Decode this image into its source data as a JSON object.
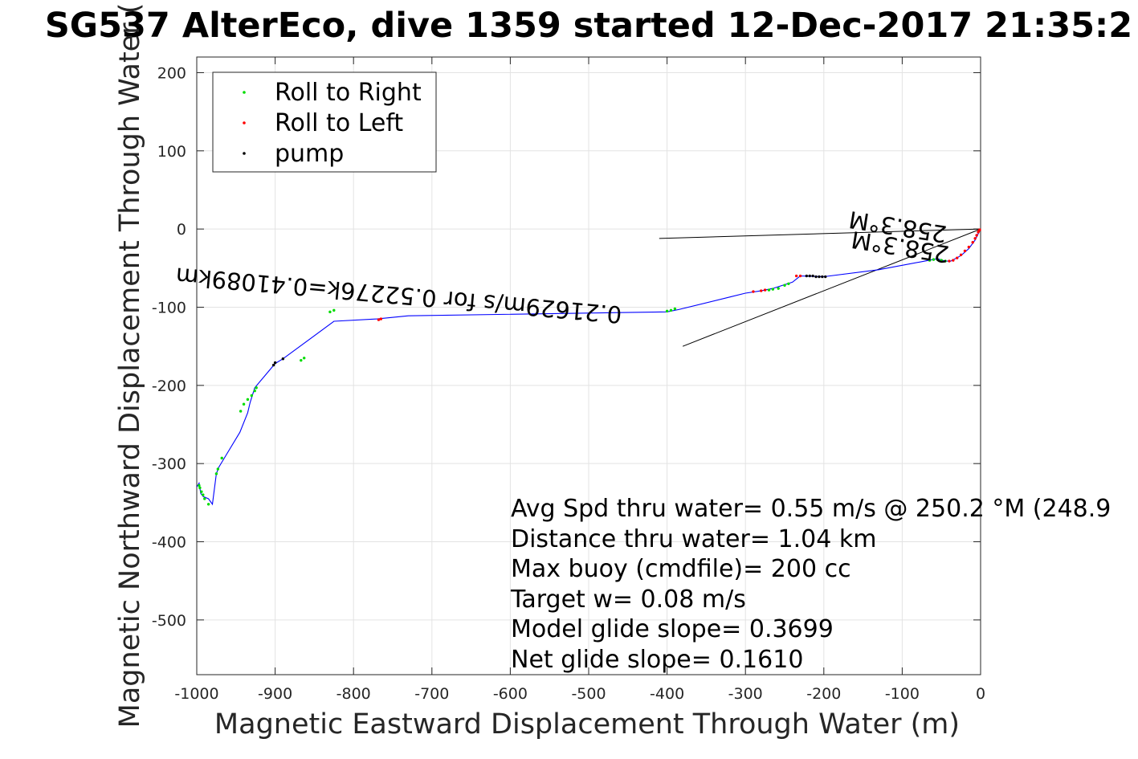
{
  "chart_data": {
    "type": "scatter",
    "title": "SG537 AlterEco, dive 1359 started 12-Dec-2017 21:35:2",
    "xlabel": "Magnetic Eastward Displacement Through Water (m)",
    "ylabel": "Magnetic Northward Displacement Through Water (",
    "xlim": [
      -1000,
      0
    ],
    "ylim": [
      -570,
      220
    ],
    "x_ticks": [
      -1000,
      -900,
      -800,
      -700,
      -600,
      -500,
      -400,
      -300,
      -200,
      -100,
      0
    ],
    "y_ticks": [
      -500,
      -400,
      -300,
      -200,
      -100,
      0,
      100,
      200
    ],
    "grid": true,
    "legend_position": "top-left",
    "colors": {
      "track": "#0000ff",
      "right": "#00dd00",
      "left": "#ff0000",
      "pump": "#000000",
      "left_dense": "#c00050"
    },
    "series": [
      {
        "name": "Roll to Right",
        "x": [
          -997,
          -996,
          -994,
          -992,
          -990,
          -985,
          -975,
          -973,
          -968,
          -944,
          -940,
          -935,
          -930,
          -926,
          -924,
          -867,
          -863,
          -830,
          -825,
          -400,
          -395,
          -390,
          -270,
          -265,
          -258,
          -250,
          -245,
          -65,
          -60,
          -55,
          -50,
          -45
        ],
        "y": [
          -328,
          -331,
          -336,
          -340,
          -345,
          -352,
          -313,
          -307,
          -293,
          -233,
          -224,
          -218,
          -213,
          -207,
          -203,
          -168,
          -165,
          -106,
          -104,
          -105,
          -104,
          -102,
          -78,
          -77,
          -76,
          -72,
          -70,
          -40,
          -39,
          -39,
          -40,
          -41
        ]
      },
      {
        "name": "Roll to Left",
        "x": [
          -768,
          -765,
          -290,
          -280,
          -275,
          -235,
          -230,
          -40,
          -35,
          -30,
          -25,
          -20,
          -15,
          -10,
          -7,
          -5,
          -3,
          -2,
          -1
        ],
        "y": [
          -116,
          -115,
          -80,
          -79,
          -78,
          -60,
          -60,
          -41,
          -40,
          -37,
          -33,
          -28,
          -23,
          -17,
          -12,
          -8,
          -4,
          -2,
          -1
        ]
      },
      {
        "name": "pump",
        "x": [
          -902,
          -900,
          -890,
          -222,
          -218,
          -214,
          -210,
          -206,
          -202,
          -198
        ],
        "y": [
          -174,
          -171,
          -166,
          -60,
          -60,
          -60,
          -61,
          -61,
          -61,
          -61
        ]
      }
    ],
    "track": {
      "name": "track",
      "x": [
        -1000,
        -997,
        -995,
        -992,
        -985,
        -980,
        -975,
        -972,
        -963,
        -945,
        -935,
        -932,
        -926,
        -900,
        -890,
        -825,
        -770,
        -730,
        -400,
        -385,
        -320,
        -300,
        -280,
        -265,
        -240,
        -230,
        -200,
        -130,
        -55,
        -45,
        -38,
        -25,
        -15,
        -7,
        -3,
        0
      ],
      "y": [
        -330,
        -325,
        -338,
        -342,
        -345,
        -352,
        -313,
        -305,
        -290,
        -260,
        -235,
        -222,
        -203,
        -172,
        -166,
        -118,
        -115,
        -111,
        -106,
        -103,
        -87,
        -82,
        -79,
        -76,
        -68,
        -60,
        -61,
        -52,
        -38,
        -41,
        -41,
        -34,
        -25,
        -14,
        -6,
        0
      ]
    },
    "reference_lines": [
      {
        "name": "dac",
        "x": [
          0,
          -410
        ],
        "y": [
          0,
          -12
        ]
      },
      {
        "name": "current",
        "x": [
          0,
          -380
        ],
        "y": [
          0,
          -150
        ]
      }
    ],
    "annotations": {
      "rotated_labels": [
        "0.21629m/s for 0.52276k=0.41089km",
        "258.3°M",
        "258.3°M"
      ],
      "stats": [
        "Avg Spd thru water=  0.55 m/s @ 250.2 °M (248.9",
        "Distance thru water=  1.04 km",
        "Max buoy (cmdfile)= 200 cc",
        "Target w= 0.08 m/s",
        "Model glide slope= 0.3699",
        "Net glide slope= 0.1610"
      ]
    }
  }
}
